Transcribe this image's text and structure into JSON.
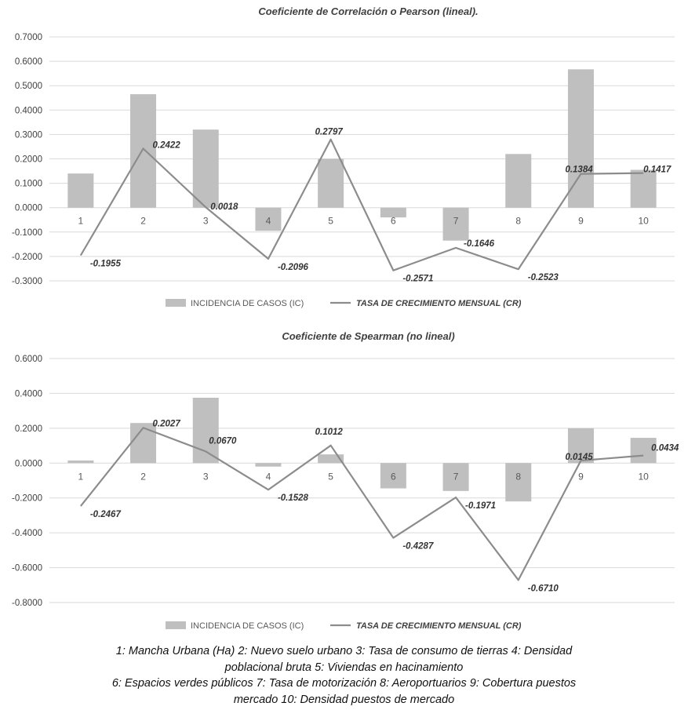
{
  "colors": {
    "bar": "#bfbfbf",
    "line": "#8c8c8c",
    "grid": "#d9d9d9",
    "text": "#404040"
  },
  "chart_data": [
    {
      "type": "bar",
      "title": "Coeficiente de Correlación o Pearson (lineal).",
      "categories": [
        "1",
        "2",
        "3",
        "4",
        "5",
        "6",
        "7",
        "8",
        "9",
        "10"
      ],
      "y_ticks": [
        "0.7000",
        "0.6000",
        "0.5000",
        "0.4000",
        "0.3000",
        "0.2000",
        "0.1000",
        "0.0000",
        "-0.1000",
        "-0.2000",
        "-0.3000"
      ],
      "ylim": [
        -0.3,
        0.7
      ],
      "grid": true,
      "legend_position": "bottom",
      "series": [
        {
          "name": "INCIDENCIA DE CASOS (IC)",
          "type": "bar",
          "values": [
            0.14,
            0.465,
            0.32,
            -0.095,
            0.2,
            -0.04,
            -0.135,
            0.22,
            0.567,
            0.155
          ]
        },
        {
          "name": "TASA DE CRECIMIENTO MENSUAL (CR)",
          "type": "line",
          "values": [
            -0.1955,
            0.2422,
            0.0018,
            -0.2096,
            0.2797,
            -0.2571,
            -0.1646,
            -0.2523,
            0.1384,
            0.1417
          ],
          "labels": [
            "-0.1955",
            "0.2422",
            "0.0018",
            "-0.2096",
            "0.2797",
            "-0.2571",
            "-0.1646",
            "-0.2523",
            "0.1384",
            "0.1417"
          ]
        }
      ]
    },
    {
      "type": "bar",
      "title": "Coeficiente de Spearman (no lineal)",
      "categories": [
        "1",
        "2",
        "3",
        "4",
        "5",
        "6",
        "7",
        "8",
        "9",
        "10"
      ],
      "y_ticks": [
        "0.6000",
        "0.4000",
        "0.2000",
        "0.0000",
        "-0.2000",
        "-0.4000",
        "-0.6000",
        "-0.8000"
      ],
      "ylim": [
        -0.8,
        0.6
      ],
      "grid": true,
      "legend_position": "bottom",
      "series": [
        {
          "name": "INCIDENCIA DE CASOS (IC)",
          "type": "bar",
          "values": [
            0.015,
            0.23,
            0.375,
            -0.02,
            0.05,
            -0.145,
            -0.16,
            -0.22,
            0.2,
            0.145
          ]
        },
        {
          "name": "TASA DE CRECIMIENTO MENSUAL (CR)",
          "type": "line",
          "values": [
            -0.2467,
            0.2027,
            0.067,
            -0.1528,
            0.1012,
            -0.4287,
            -0.1971,
            -0.671,
            0.0145,
            0.0434
          ],
          "labels": [
            "-0.2467",
            "0.2027",
            "0.0670",
            "-0.1528",
            "0.1012",
            "-0.4287",
            "-0.1971",
            "-0.6710",
            "0.0145",
            "0.0434"
          ]
        }
      ]
    }
  ],
  "caption": {
    "lines": [
      "1: Mancha Urbana (Ha) 2: Nuevo suelo urbano 3: Tasa de consumo de tierras 4: Densidad",
      "poblacional bruta 5: Viviendas en hacinamiento",
      "6: Espacios verdes públicos 7: Tasa de motorización 8: Aeroportuarios 9: Cobertura puestos",
      "mercado 10: Densidad puestos de mercado"
    ]
  }
}
